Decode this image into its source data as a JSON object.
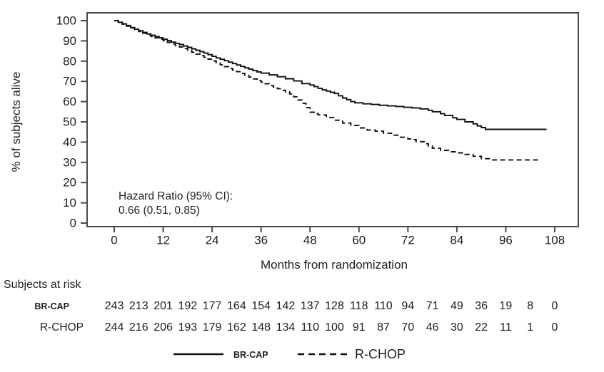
{
  "figure": {
    "annotation_line1": "Hazard Ratio (95% CI):",
    "annotation_line2": "0.66 (0.51, 0.85)"
  },
  "chart_data": {
    "type": "line",
    "subtype": "kaplan-meier-step",
    "title": "",
    "xlabel": "Months from randomization",
    "ylabel": "% of subjects alive",
    "xlim": [
      0,
      108
    ],
    "ylim": [
      0,
      100
    ],
    "xticks": [
      0,
      12,
      24,
      36,
      48,
      60,
      72,
      84,
      96,
      108
    ],
    "yticks": [
      0,
      10,
      20,
      30,
      40,
      50,
      60,
      70,
      80,
      90,
      100
    ],
    "grid": false,
    "legend_position": "bottom",
    "annotation": "Hazard Ratio (95% CI): 0.66 (0.51, 0.85)",
    "series": [
      {
        "name": "BR-CAP",
        "style": "solid",
        "color": "#0f0f0f",
        "points": [
          [
            0,
            100
          ],
          [
            1,
            99.2
          ],
          [
            2,
            98.4
          ],
          [
            3,
            97.6
          ],
          [
            4,
            96.6
          ],
          [
            5,
            95.8
          ],
          [
            6,
            95
          ],
          [
            7,
            94.2
          ],
          [
            8,
            93.4
          ],
          [
            9,
            92.8
          ],
          [
            10,
            92.2
          ],
          [
            11,
            91.5
          ],
          [
            12,
            90.8
          ],
          [
            13,
            90.1
          ],
          [
            14,
            89.4
          ],
          [
            15,
            88.8
          ],
          [
            16,
            88.2
          ],
          [
            17,
            87.5
          ],
          [
            18,
            86.8
          ],
          [
            19,
            86.1
          ],
          [
            20,
            85.4
          ],
          [
            21,
            84.7
          ],
          [
            22,
            84
          ],
          [
            23,
            83.2
          ],
          [
            24,
            82.4
          ],
          [
            25,
            81.6
          ],
          [
            26,
            80.9
          ],
          [
            27,
            80.2
          ],
          [
            28,
            79.5
          ],
          [
            29,
            78.8
          ],
          [
            30,
            78.1
          ],
          [
            31,
            77.4
          ],
          [
            32,
            76.7
          ],
          [
            33,
            76.1
          ],
          [
            34,
            75.4
          ],
          [
            35,
            74.7
          ],
          [
            36,
            74.1
          ],
          [
            38,
            73.2
          ],
          [
            40,
            72.3
          ],
          [
            42,
            71.3
          ],
          [
            44,
            70.2
          ],
          [
            46,
            68.9
          ],
          [
            48,
            68.2
          ],
          [
            49,
            67.4
          ],
          [
            50,
            66.6
          ],
          [
            51,
            65.8
          ],
          [
            52,
            65.2
          ],
          [
            53,
            64.6
          ],
          [
            54,
            64
          ],
          [
            55,
            62.9
          ],
          [
            56,
            61.8
          ],
          [
            57,
            61
          ],
          [
            58,
            60
          ],
          [
            59,
            59.4
          ],
          [
            61,
            58.9
          ],
          [
            63,
            58.6
          ],
          [
            65,
            58.2
          ],
          [
            67,
            57.9
          ],
          [
            69,
            57.6
          ],
          [
            71,
            57.2
          ],
          [
            73,
            56.9
          ],
          [
            75,
            56.4
          ],
          [
            77,
            55.7
          ],
          [
            78,
            55
          ],
          [
            80,
            54
          ],
          [
            81,
            53.2
          ],
          [
            83,
            52
          ],
          [
            84,
            51.2
          ],
          [
            86,
            50
          ],
          [
            88,
            49
          ],
          [
            89,
            48
          ],
          [
            90,
            47.2
          ],
          [
            91,
            46.3
          ],
          [
            106,
            46.3
          ]
        ]
      },
      {
        "name": "R-CHOP",
        "style": "dashed",
        "color": "#0f0f0f",
        "points": [
          [
            0,
            100
          ],
          [
            1,
            99.1
          ],
          [
            2,
            98.2
          ],
          [
            3,
            97.3
          ],
          [
            4,
            96.4
          ],
          [
            5,
            95.5
          ],
          [
            6,
            94.6
          ],
          [
            7,
            93.8
          ],
          [
            8,
            93
          ],
          [
            9,
            92.2
          ],
          [
            10,
            91.5
          ],
          [
            11,
            90.8
          ],
          [
            12,
            90.1
          ],
          [
            13,
            89.3
          ],
          [
            14,
            88.5
          ],
          [
            15,
            87.7
          ],
          [
            16,
            87
          ],
          [
            17,
            86.2
          ],
          [
            18,
            85.3
          ],
          [
            19,
            84.4
          ],
          [
            20,
            83.5
          ],
          [
            21,
            82.7
          ],
          [
            22,
            81.9
          ],
          [
            23,
            81
          ],
          [
            24,
            80.1
          ],
          [
            25,
            79.1
          ],
          [
            26,
            78.2
          ],
          [
            27,
            77.3
          ],
          [
            28,
            76.4
          ],
          [
            29,
            75.6
          ],
          [
            30,
            74.8
          ],
          [
            31,
            73.9
          ],
          [
            32,
            73
          ],
          [
            33,
            72.1
          ],
          [
            34,
            71.2
          ],
          [
            35,
            70.4
          ],
          [
            36,
            69.6
          ],
          [
            37,
            68.8
          ],
          [
            38,
            68
          ],
          [
            39,
            67.2
          ],
          [
            40,
            66.4
          ],
          [
            41,
            65.6
          ],
          [
            42,
            64.8
          ],
          [
            43,
            63.8
          ],
          [
            44,
            62.4
          ],
          [
            45,
            60.8
          ],
          [
            46,
            59.2
          ],
          [
            47,
            57
          ],
          [
            48,
            54.8
          ],
          [
            49,
            54
          ],
          [
            50,
            53.4
          ],
          [
            52,
            52.2
          ],
          [
            54,
            50.8
          ],
          [
            56,
            49.4
          ],
          [
            58,
            48.2
          ],
          [
            60,
            47
          ],
          [
            62,
            46
          ],
          [
            64,
            45.4
          ],
          [
            66,
            44.4
          ],
          [
            68,
            43.4
          ],
          [
            70,
            42.4
          ],
          [
            72,
            41.6
          ],
          [
            73,
            41.2
          ],
          [
            74,
            40.2
          ],
          [
            76,
            39.2
          ],
          [
            77,
            38
          ],
          [
            78,
            37
          ],
          [
            80,
            35.9
          ],
          [
            82,
            35.2
          ],
          [
            84,
            34.7
          ],
          [
            86,
            33.9
          ],
          [
            88,
            33
          ],
          [
            90,
            31.8
          ],
          [
            92,
            31.2
          ],
          [
            104,
            31.2
          ]
        ]
      }
    ]
  },
  "at_risk": {
    "title": "Subjects at risk",
    "interval_months": 6,
    "rows": [
      {
        "label": "BR-CAP",
        "counts": [
          243,
          213,
          201,
          192,
          177,
          164,
          154,
          142,
          137,
          128,
          118,
          110,
          94,
          71,
          49,
          36,
          19,
          8,
          0
        ]
      },
      {
        "label": "R-CHOP",
        "counts": [
          244,
          216,
          206,
          193,
          179,
          162,
          148,
          134,
          110,
          100,
          91,
          87,
          70,
          46,
          30,
          22,
          11,
          1,
          0
        ]
      }
    ]
  },
  "legend": {
    "items": [
      {
        "label": "BR-CAP",
        "style": "solid"
      },
      {
        "label": "R-CHOP",
        "style": "dashed"
      }
    ]
  },
  "colors": {
    "curve": "#0f0f0f",
    "frame": "#4a4a4a",
    "text": "#1f1f1f",
    "background": "#ffffff"
  }
}
